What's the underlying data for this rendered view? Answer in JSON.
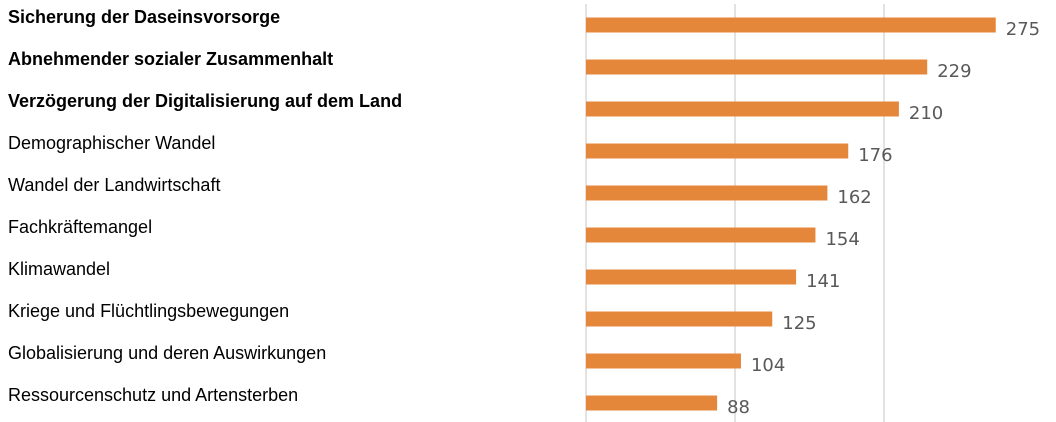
{
  "chart_data": {
    "type": "bar",
    "orientation": "horizontal",
    "categories": [
      "Sicherung der Daseinsvorsorge",
      "Abnehmender sozialer Zusammenhalt",
      "Verzögerung der Digitalisierung auf dem Land",
      "Demographischer Wandel",
      "Wandel der Landwirtschaft",
      "Fachkräftemangel",
      "Klimawandel",
      "Kriege und Flüchtlingsbewegungen",
      "Globalisierung und deren Auswirkungen",
      "Ressourcenschutz und Artensterben"
    ],
    "bold": [
      true,
      true,
      true,
      false,
      false,
      false,
      false,
      false,
      false,
      false
    ],
    "values": [
      275,
      229,
      210,
      176,
      162,
      154,
      141,
      125,
      104,
      88
    ],
    "color": "#e5873a",
    "xlim": [
      0,
      300
    ],
    "xticks": [
      0,
      100,
      200
    ],
    "grid": true
  }
}
